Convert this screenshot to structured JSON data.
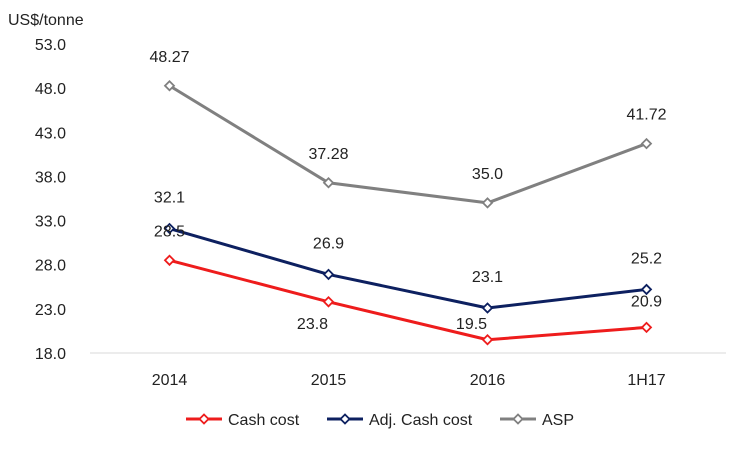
{
  "chart_data": {
    "type": "line",
    "unit_label": "US$/tonne",
    "categories": [
      "2014",
      "2015",
      "2016",
      "1H17"
    ],
    "ylim": [
      18.0,
      53.0
    ],
    "yticks": [
      "18.0",
      "23.0",
      "28.0",
      "33.0",
      "38.0",
      "43.0",
      "48.0",
      "53.0"
    ],
    "grid": false,
    "legend_position": "bottom",
    "series": [
      {
        "name": "Cash cost",
        "color": "#ee1c1c",
        "marker": "diamond-open",
        "values": [
          28.5,
          23.8,
          19.5,
          20.9
        ],
        "labels": [
          "28.5",
          "23.8",
          "19.5",
          "20.9"
        ]
      },
      {
        "name": "Adj. Cash cost",
        "color": "#0d2060",
        "marker": "diamond-open",
        "values": [
          32.1,
          26.9,
          23.1,
          25.2
        ],
        "labels": [
          "32.1",
          "26.9",
          "23.1",
          "25.2"
        ]
      },
      {
        "name": "ASP",
        "color": "#808080",
        "marker": "diamond-open",
        "values": [
          48.27,
          37.28,
          35.0,
          41.72
        ],
        "labels": [
          "48.27",
          "37.28",
          "35.0",
          "41.72"
        ]
      }
    ]
  }
}
